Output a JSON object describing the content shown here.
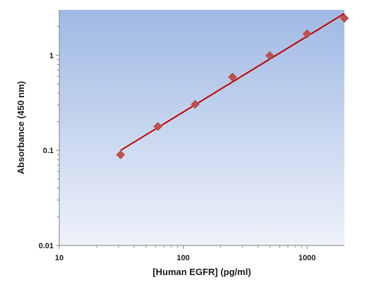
{
  "chart_data": {
    "type": "scatter",
    "title": "",
    "xlabel": "[Human EGFR] (pg/ml)",
    "ylabel": "Absorbance (450 nm)",
    "x_scale": "log",
    "y_scale": "log",
    "xlim": [
      10,
      2000
    ],
    "ylim": [
      0.01,
      3
    ],
    "x_ticks": [
      {
        "value": 10,
        "label": "10"
      },
      {
        "value": 100,
        "label": "100"
      },
      {
        "value": 1000,
        "label": "1000"
      }
    ],
    "y_ticks": [
      {
        "value": 0.01,
        "label": "0.01"
      },
      {
        "value": 0.1,
        "label": "0.1"
      },
      {
        "value": 1,
        "label": "1"
      }
    ],
    "grid": false,
    "legend": "none",
    "series": [
      {
        "marker": "diamond",
        "color": "#c0504d",
        "x": [
          31.25,
          62.5,
          125,
          250,
          500,
          1000,
          2000
        ],
        "y": [
          0.09,
          0.178,
          0.305,
          0.59,
          0.99,
          1.68,
          2.45
        ]
      }
    ],
    "fit": {
      "kind": "power",
      "color": "#c00000",
      "x": [
        31.25,
        2000
      ],
      "y": [
        0.1,
        2.75
      ]
    },
    "colors": {
      "plot_background_top": "#9fb9e3",
      "plot_background_bottom": "#eef2fa",
      "marker": "#c0504d",
      "fit_line": "#c00000"
    }
  }
}
